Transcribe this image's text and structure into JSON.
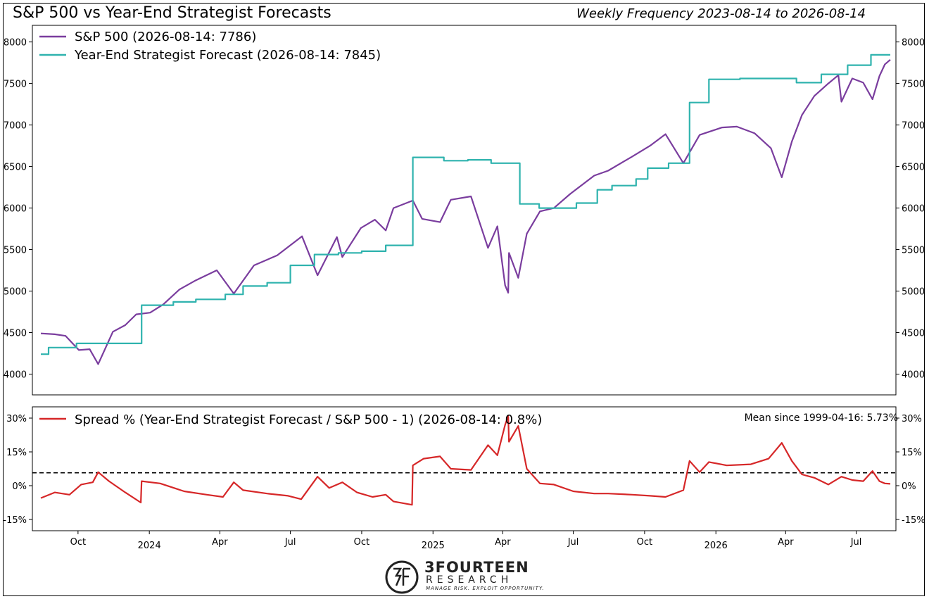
{
  "header": {
    "title": "S&P 500 vs Year-End Strategist Forecasts",
    "subtitle": "Weekly Frequency 2023-08-14 to 2026-08-14"
  },
  "colors": {
    "spx": "#7a3d9e",
    "forecast": "#2fb3ae",
    "spread": "#d62728",
    "mean_line": "#000000"
  },
  "logo": {
    "name": "3FOURTEEN",
    "sub": "RESEARCH",
    "tagline": "MANAGE RISK. EXPLOIT OPPORTUNITY."
  },
  "chart_data": [
    {
      "type": "line",
      "x_range": [
        "2023-08-14",
        "2026-08-14"
      ],
      "ylim": [
        3750,
        8200
      ],
      "y_ticks": [
        4000,
        4500,
        5000,
        5500,
        6000,
        6500,
        7000,
        7500,
        8000
      ],
      "legend_position": "top-left",
      "series": [
        {
          "name": "S&P 500 (2026-08-14: 7786)",
          "key": "spx",
          "points": [
            [
              "2023-08-14",
              4490
            ],
            [
              "2023-09-01",
              4480
            ],
            [
              "2023-09-15",
              4460
            ],
            [
              "2023-10-02",
              4290
            ],
            [
              "2023-10-16",
              4300
            ],
            [
              "2023-10-27",
              4120
            ],
            [
              "2023-11-15",
              4510
            ],
            [
              "2023-12-01",
              4590
            ],
            [
              "2023-12-15",
              4720
            ],
            [
              "2024-01-02",
              4740
            ],
            [
              "2024-01-19",
              4840
            ],
            [
              "2024-02-09",
              5020
            ],
            [
              "2024-03-01",
              5130
            ],
            [
              "2024-03-28",
              5250
            ],
            [
              "2024-04-19",
              4970
            ],
            [
              "2024-05-15",
              5310
            ],
            [
              "2024-06-14",
              5430
            ],
            [
              "2024-07-16",
              5660
            ],
            [
              "2024-08-05",
              5190
            ],
            [
              "2024-08-30",
              5650
            ],
            [
              "2024-09-06",
              5410
            ],
            [
              "2024-09-30",
              5760
            ],
            [
              "2024-10-18",
              5860
            ],
            [
              "2024-11-01",
              5730
            ],
            [
              "2024-11-11",
              6000
            ],
            [
              "2024-12-06",
              6090
            ],
            [
              "2024-12-18",
              5870
            ],
            [
              "2025-01-10",
              5830
            ],
            [
              "2025-01-24",
              6100
            ],
            [
              "2025-02-19",
              6140
            ],
            [
              "2025-03-13",
              5520
            ],
            [
              "2025-03-25",
              5780
            ],
            [
              "2025-04-04",
              5070
            ],
            [
              "2025-04-08",
              4980
            ],
            [
              "2025-04-09",
              5460
            ],
            [
              "2025-04-21",
              5160
            ],
            [
              "2025-05-02",
              5690
            ],
            [
              "2025-05-19",
              5960
            ],
            [
              "2025-06-06",
              6000
            ],
            [
              "2025-06-27",
              6170
            ],
            [
              "2025-07-28",
              6390
            ],
            [
              "2025-08-15",
              6450
            ],
            [
              "2025-09-15",
              6620
            ],
            [
              "2025-10-08",
              6750
            ],
            [
              "2025-10-28",
              6890
            ],
            [
              "2025-11-20",
              6540
            ],
            [
              "2025-12-11",
              6880
            ],
            [
              "2026-01-09",
              6970
            ],
            [
              "2026-01-28",
              6980
            ],
            [
              "2026-02-20",
              6900
            ],
            [
              "2026-03-13",
              6720
            ],
            [
              "2026-03-27",
              6370
            ],
            [
              "2026-04-09",
              6800
            ],
            [
              "2026-04-22",
              7120
            ],
            [
              "2026-05-08",
              7350
            ],
            [
              "2026-05-26",
              7500
            ],
            [
              "2026-06-08",
              7600
            ],
            [
              "2026-06-12",
              7280
            ],
            [
              "2026-06-26",
              7560
            ],
            [
              "2026-07-10",
              7510
            ],
            [
              "2026-07-22",
              7310
            ],
            [
              "2026-07-31",
              7590
            ],
            [
              "2026-08-07",
              7730
            ],
            [
              "2026-08-14",
              7786
            ]
          ]
        },
        {
          "name": "Year-End Strategist Forecast (2026-08-14: 7845)",
          "key": "forecast",
          "step": true,
          "points": [
            [
              "2023-08-14",
              4240
            ],
            [
              "2023-08-24",
              4320
            ],
            [
              "2023-09-29",
              4370
            ],
            [
              "2023-12-22",
              4830
            ],
            [
              "2024-02-01",
              4870
            ],
            [
              "2024-03-01",
              4900
            ],
            [
              "2024-04-08",
              4960
            ],
            [
              "2024-05-01",
              5060
            ],
            [
              "2024-06-01",
              5100
            ],
            [
              "2024-07-01",
              5310
            ],
            [
              "2024-08-01",
              5440
            ],
            [
              "2024-09-01",
              5460
            ],
            [
              "2024-10-01",
              5480
            ],
            [
              "2024-11-01",
              5550
            ],
            [
              "2024-12-06",
              6610
            ],
            [
              "2025-01-15",
              6570
            ],
            [
              "2025-02-15",
              6580
            ],
            [
              "2025-03-17",
              6540
            ],
            [
              "2025-04-23",
              6050
            ],
            [
              "2025-05-18",
              6000
            ],
            [
              "2025-07-05",
              6060
            ],
            [
              "2025-08-01",
              6220
            ],
            [
              "2025-08-20",
              6270
            ],
            [
              "2025-09-20",
              6350
            ],
            [
              "2025-10-05",
              6480
            ],
            [
              "2025-11-01",
              6540
            ],
            [
              "2025-11-28",
              7270
            ],
            [
              "2025-12-23",
              7550
            ],
            [
              "2026-02-01",
              7560
            ],
            [
              "2026-04-15",
              7510
            ],
            [
              "2026-05-17",
              7610
            ],
            [
              "2026-06-20",
              7720
            ],
            [
              "2026-07-20",
              7845
            ],
            [
              "2026-08-14",
              7845
            ]
          ]
        }
      ]
    },
    {
      "type": "line",
      "x_range": [
        "2023-08-14",
        "2026-08-14"
      ],
      "ylim": [
        -20,
        35
      ],
      "y_tick_labels": [
        "-15%",
        "0%",
        "15%",
        "30%"
      ],
      "y_ticks": [
        -15,
        0,
        15,
        30
      ],
      "x_ticks": [
        {
          "date": "2023-10-01",
          "label": "Oct"
        },
        {
          "date": "2024-01-01",
          "label": "2024"
        },
        {
          "date": "2024-04-01",
          "label": "Apr"
        },
        {
          "date": "2024-07-01",
          "label": "Jul"
        },
        {
          "date": "2024-10-01",
          "label": "Oct"
        },
        {
          "date": "2025-01-01",
          "label": "2025"
        },
        {
          "date": "2025-04-01",
          "label": "Apr"
        },
        {
          "date": "2025-07-01",
          "label": "Jul"
        },
        {
          "date": "2025-10-01",
          "label": "Oct"
        },
        {
          "date": "2026-01-01",
          "label": "2026"
        },
        {
          "date": "2026-04-01",
          "label": "Apr"
        },
        {
          "date": "2026-07-01",
          "label": "Jul"
        }
      ],
      "annotation": "Mean since 1999-04-16: 5.73%",
      "mean": 5.73,
      "legend_position": "top-left",
      "series": [
        {
          "name": "Spread % (Year-End Strategist Forecast / S&P 500 - 1) (2026-08-14: 0.8%)",
          "key": "spread",
          "points": [
            [
              "2023-08-14",
              -5.5
            ],
            [
              "2023-09-01",
              -3.0
            ],
            [
              "2023-09-20",
              -4.0
            ],
            [
              "2023-10-05",
              0.5
            ],
            [
              "2023-10-20",
              1.5
            ],
            [
              "2023-10-27",
              6.0
            ],
            [
              "2023-11-10",
              2.0
            ],
            [
              "2023-12-01",
              -3.0
            ],
            [
              "2023-12-21",
              -7.5
            ],
            [
              "2023-12-22",
              2.0
            ],
            [
              "2024-01-15",
              1.0
            ],
            [
              "2024-02-15",
              -2.5
            ],
            [
              "2024-03-15",
              -4.0
            ],
            [
              "2024-04-05",
              -5.0
            ],
            [
              "2024-04-19",
              1.5
            ],
            [
              "2024-05-01",
              -2.0
            ],
            [
              "2024-06-01",
              -3.5
            ],
            [
              "2024-06-28",
              -4.5
            ],
            [
              "2024-07-15",
              -6.0
            ],
            [
              "2024-08-05",
              4.0
            ],
            [
              "2024-08-20",
              -1.0
            ],
            [
              "2024-09-06",
              1.5
            ],
            [
              "2024-09-25",
              -3.0
            ],
            [
              "2024-10-15",
              -5.0
            ],
            [
              "2024-11-01",
              -4.0
            ],
            [
              "2024-11-11",
              -7.0
            ],
            [
              "2024-12-05",
              -8.5
            ],
            [
              "2024-12-06",
              9.0
            ],
            [
              "2024-12-20",
              12.0
            ],
            [
              "2025-01-10",
              13.0
            ],
            [
              "2025-01-24",
              7.5
            ],
            [
              "2025-02-19",
              7.0
            ],
            [
              "2025-03-13",
              18.0
            ],
            [
              "2025-03-25",
              13.5
            ],
            [
              "2025-04-04",
              27.0
            ],
            [
              "2025-04-08",
              31.0
            ],
            [
              "2025-04-09",
              19.5
            ],
            [
              "2025-04-21",
              26.5
            ],
            [
              "2025-05-02",
              7.5
            ],
            [
              "2025-05-19",
              1.0
            ],
            [
              "2025-06-06",
              0.5
            ],
            [
              "2025-07-01",
              -2.5
            ],
            [
              "2025-07-28",
              -3.5
            ],
            [
              "2025-08-15",
              -3.5
            ],
            [
              "2025-09-15",
              -4.0
            ],
            [
              "2025-10-08",
              -4.5
            ],
            [
              "2025-10-28",
              -5.0
            ],
            [
              "2025-11-20",
              -2.0
            ],
            [
              "2025-11-28",
              11.0
            ],
            [
              "2025-12-11",
              6.0
            ],
            [
              "2025-12-23",
              10.5
            ],
            [
              "2026-01-15",
              9.0
            ],
            [
              "2026-02-15",
              9.5
            ],
            [
              "2026-03-10",
              12.0
            ],
            [
              "2026-03-27",
              19.0
            ],
            [
              "2026-04-09",
              11.0
            ],
            [
              "2026-04-22",
              5.0
            ],
            [
              "2026-05-08",
              3.5
            ],
            [
              "2026-05-26",
              0.5
            ],
            [
              "2026-06-12",
              4.0
            ],
            [
              "2026-06-26",
              2.5
            ],
            [
              "2026-07-10",
              2.0
            ],
            [
              "2026-07-22",
              6.5
            ],
            [
              "2026-07-31",
              2.0
            ],
            [
              "2026-08-07",
              1.0
            ],
            [
              "2026-08-14",
              0.8
            ]
          ]
        }
      ]
    }
  ]
}
